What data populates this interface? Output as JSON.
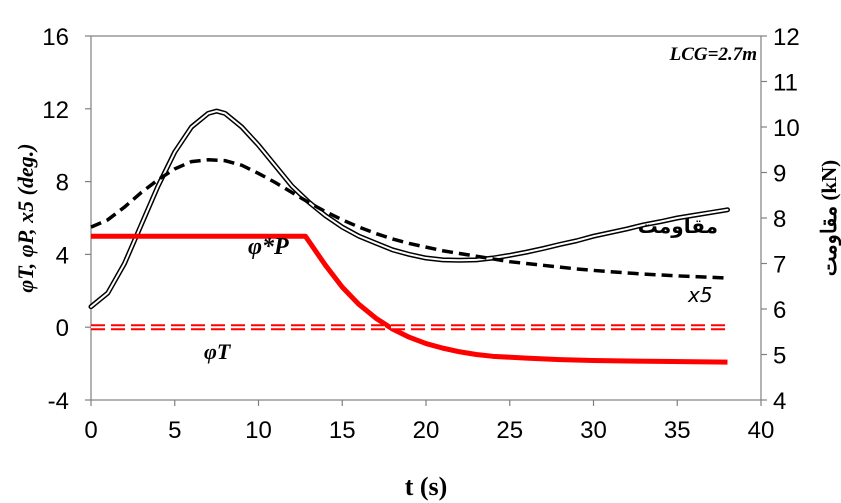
{
  "chart_data": {
    "type": "line",
    "annotation": "LCG=2.7m",
    "xlabel": "t (s)",
    "ylabel_left": "φT, φP, x5 (deg.)",
    "ylabel_right": "مقاومت (kN)",
    "xlim": [
      0,
      40
    ],
    "ylim_left": [
      -4,
      16
    ],
    "ylim_right": [
      4,
      12
    ],
    "x_ticks": [
      "0",
      "5",
      "10",
      "15",
      "20",
      "25",
      "30",
      "35",
      "40"
    ],
    "y_left_ticks": [
      "-4",
      "0",
      "4",
      "8",
      "12",
      "16"
    ],
    "y_right_ticks": [
      "4",
      "5",
      "6",
      "7",
      "8",
      "9",
      "10",
      "11",
      "12"
    ],
    "grid": false,
    "series": [
      {
        "name": "مقاومت",
        "axis": "right",
        "style": "double",
        "color": "#000000",
        "x": [
          0,
          1,
          2,
          3,
          4,
          5,
          6,
          7,
          7.5,
          8,
          9,
          10,
          11,
          12,
          13,
          14,
          15,
          16,
          17,
          18,
          19,
          20,
          21,
          22,
          23,
          24,
          25,
          26,
          27,
          28,
          29,
          30,
          31,
          32,
          33,
          34,
          35,
          36,
          37,
          38
        ],
        "values": [
          6.05,
          6.35,
          7.0,
          7.85,
          8.7,
          9.45,
          10.0,
          10.3,
          10.35,
          10.3,
          10.0,
          9.6,
          9.15,
          8.7,
          8.35,
          8.05,
          7.8,
          7.6,
          7.45,
          7.3,
          7.2,
          7.12,
          7.08,
          7.07,
          7.08,
          7.12,
          7.18,
          7.25,
          7.33,
          7.42,
          7.5,
          7.6,
          7.68,
          7.76,
          7.85,
          7.92,
          8.0,
          8.06,
          8.12,
          8.18
        ]
      },
      {
        "name": "x5",
        "axis": "left",
        "style": "dashed",
        "color": "#000000",
        "x": [
          0,
          1,
          2,
          3,
          4,
          5,
          6,
          7,
          8,
          9,
          10,
          11,
          12,
          13,
          14,
          15,
          16,
          17,
          18,
          19,
          20,
          21,
          22,
          23,
          24,
          25,
          26,
          27,
          28,
          29,
          30,
          31,
          32,
          33,
          34,
          35,
          36,
          37,
          38
        ],
        "values": [
          5.5,
          5.9,
          6.6,
          7.4,
          8.1,
          8.7,
          9.1,
          9.2,
          9.15,
          8.9,
          8.45,
          7.95,
          7.4,
          6.85,
          6.35,
          5.9,
          5.5,
          5.15,
          4.85,
          4.6,
          4.4,
          4.2,
          4.05,
          3.9,
          3.75,
          3.6,
          3.5,
          3.4,
          3.3,
          3.2,
          3.12,
          3.05,
          2.98,
          2.92,
          2.87,
          2.82,
          2.78,
          2.74,
          2.7
        ]
      },
      {
        "name": "φ*P",
        "axis": "left",
        "style": "solid",
        "color": "#ff0000",
        "x": [
          0,
          12.8,
          14,
          15,
          16,
          17,
          18,
          19,
          20,
          21,
          22,
          23,
          24,
          26,
          28,
          30,
          32,
          34,
          36,
          38
        ],
        "values": [
          5.0,
          5.0,
          3.4,
          2.2,
          1.25,
          0.5,
          -0.1,
          -0.55,
          -0.9,
          -1.15,
          -1.35,
          -1.5,
          -1.6,
          -1.7,
          -1.78,
          -1.83,
          -1.86,
          -1.88,
          -1.9,
          -1.92
        ]
      },
      {
        "name": "φT",
        "axis": "left",
        "style": "dashed-double",
        "color": "#ff0000",
        "x": [
          0,
          38
        ],
        "values": [
          0,
          0
        ]
      }
    ]
  }
}
